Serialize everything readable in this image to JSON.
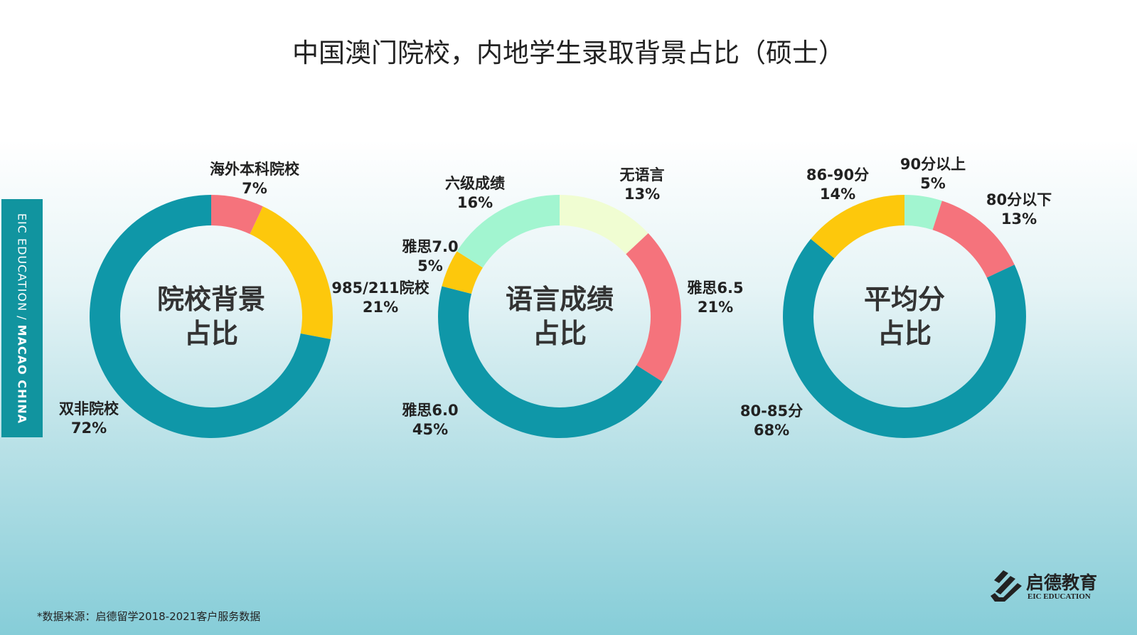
{
  "title": "中国澳门院校，内地学生录取背景占比（硕士）",
  "side_banner": {
    "left": "EIC EDUCATION",
    "sep": " / ",
    "right": "MACAO CHINA"
  },
  "source": "*数据来源：启德留学2018-2021客户服务数据",
  "logo": {
    "cn": "启德教育",
    "en": "EIC EDUCATION"
  },
  "colors": {
    "teal": "#0f97a8",
    "pink": "#f5737c",
    "yellow": "#fdc80c",
    "mint": "#a2f5d0",
    "light": "#f0fdd2"
  },
  "chart_data": [
    {
      "type": "pie",
      "donut": true,
      "center_label": [
        "院校背景",
        "占比"
      ],
      "slices": [
        {
          "label": "海外本科院校",
          "value": 7,
          "display": "7%",
          "color": "#f5737c"
        },
        {
          "label": "985/211院校",
          "value": 21,
          "display": "21%",
          "color": "#fdc80c"
        },
        {
          "label": "双非院校",
          "value": 72,
          "display": "72%",
          "color": "#0f97a8"
        }
      ]
    },
    {
      "type": "pie",
      "donut": true,
      "center_label": [
        "语言成绩",
        "占比"
      ],
      "slices": [
        {
          "label": "无语言",
          "value": 13,
          "display": "13%",
          "color": "#f0fdd2"
        },
        {
          "label": "雅思6.5",
          "value": 21,
          "display": "21%",
          "color": "#f5737c"
        },
        {
          "label": "雅思6.0",
          "value": 45,
          "display": "45%",
          "color": "#0f97a8"
        },
        {
          "label": "雅思7.0",
          "value": 5,
          "display": "5%",
          "color": "#fdc80c"
        },
        {
          "label": "六级成绩",
          "value": 16,
          "display": "16%",
          "color": "#a2f5d0"
        }
      ]
    },
    {
      "type": "pie",
      "donut": true,
      "center_label": [
        "平均分",
        "占比"
      ],
      "slices": [
        {
          "label": "90分以上",
          "value": 5,
          "display": "5%",
          "color": "#a2f5d0"
        },
        {
          "label": "80分以下",
          "value": 13,
          "display": "13%",
          "color": "#f5737c"
        },
        {
          "label": "80-85分",
          "value": 68,
          "display": "68%",
          "color": "#0f97a8"
        },
        {
          "label": "86-90分",
          "value": 14,
          "display": "14%",
          "color": "#fdc80c"
        }
      ]
    }
  ]
}
